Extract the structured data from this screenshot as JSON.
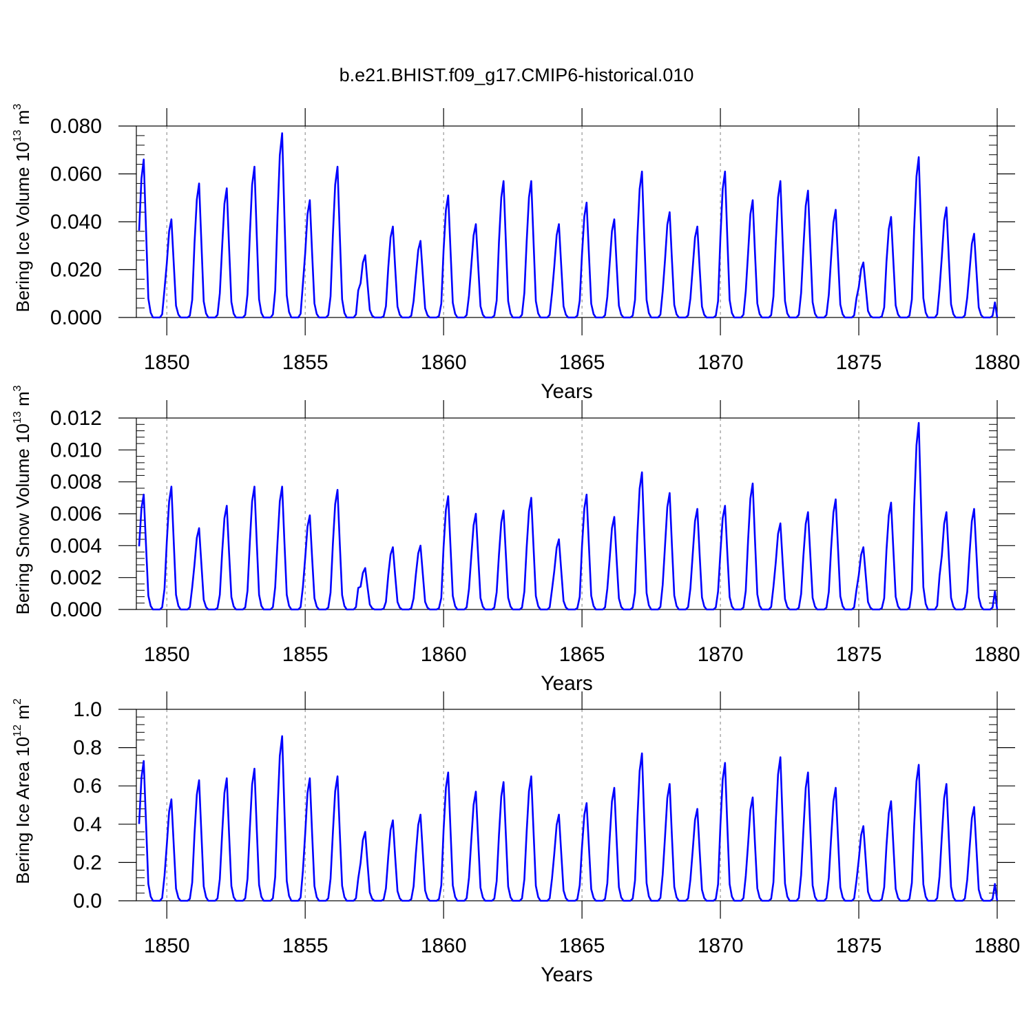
{
  "title": "b.e21.BHIST.f09_g17.CMIP6-historical.010",
  "colors": {
    "line": "#0000ff",
    "axis": "#000000",
    "gridline": "#808080"
  },
  "chart_data": [
    {
      "type": "line",
      "name": "ice-volume",
      "ylabel_main": "Bering Ice Volume 10",
      "ylabel_exp": "13",
      "ylabel_unit": " m",
      "ylabel_unit_exp": "3",
      "xlabel": "Years",
      "xlim": [
        1848.9,
        1880.0
      ],
      "ylim": [
        0,
        0.08
      ],
      "yticks": [
        0.0,
        0.02,
        0.04,
        0.06,
        0.08
      ],
      "ytick_labels": [
        "0.000",
        "0.020",
        "0.040",
        "0.060",
        "0.080"
      ],
      "xticks": [
        1850,
        1855,
        1860,
        1865,
        1870,
        1875,
        1880
      ],
      "xtick_labels": [
        "1850",
        "1855",
        "1860",
        "1865",
        "1870",
        "1875",
        "1880"
      ],
      "peaks": [
        0.066,
        0.041,
        0.056,
        0.054,
        0.063,
        0.077,
        0.049,
        0.063,
        0.026,
        0.038,
        0.032,
        0.051,
        0.039,
        0.057,
        0.057,
        0.039,
        0.048,
        0.041,
        0.061,
        0.044,
        0.038,
        0.061,
        0.049,
        0.057,
        0.053,
        0.045,
        0.023,
        0.042,
        0.067,
        0.046,
        0.035
      ],
      "series": [
        {
          "name": "Bering Ice Volume",
          "x_start": 1849.0,
          "x_step": 0.0833333,
          "values": []
        }
      ]
    },
    {
      "type": "line",
      "name": "snow-volume",
      "ylabel_main": "Bering Snow Volume 10",
      "ylabel_exp": "13",
      "ylabel_unit": " m",
      "ylabel_unit_exp": "3",
      "xlabel": "Years",
      "xlim": [
        1848.9,
        1880.0
      ],
      "ylim": [
        0,
        0.012
      ],
      "yticks": [
        0.0,
        0.002,
        0.004,
        0.006,
        0.008,
        0.01,
        0.012
      ],
      "ytick_labels": [
        "0.000",
        "0.002",
        "0.004",
        "0.006",
        "0.008",
        "0.010",
        "0.012"
      ],
      "xticks": [
        1850,
        1855,
        1860,
        1865,
        1870,
        1875,
        1880
      ],
      "xtick_labels": [
        "1850",
        "1855",
        "1860",
        "1865",
        "1870",
        "1875",
        "1880"
      ],
      "peaks": [
        0.0072,
        0.0077,
        0.0051,
        0.0065,
        0.0077,
        0.0077,
        0.0059,
        0.0075,
        0.0026,
        0.0039,
        0.004,
        0.0071,
        0.006,
        0.0062,
        0.007,
        0.0044,
        0.0072,
        0.0058,
        0.0086,
        0.0073,
        0.0063,
        0.0065,
        0.0079,
        0.0054,
        0.0061,
        0.0069,
        0.0039,
        0.0067,
        0.0117,
        0.0061,
        0.0063
      ],
      "series": [
        {
          "name": "Bering Snow Volume",
          "x_start": 1849.0,
          "x_step": 0.0833333,
          "values": []
        }
      ]
    },
    {
      "type": "line",
      "name": "ice-area",
      "ylabel_main": "Bering Ice Area 10",
      "ylabel_exp": "12",
      "ylabel_unit": " m",
      "ylabel_unit_exp": "2",
      "xlabel": "Years",
      "xlim": [
        1848.9,
        1880.0
      ],
      "ylim": [
        0,
        1.0
      ],
      "yticks": [
        0.0,
        0.2,
        0.4,
        0.6,
        0.8,
        1.0
      ],
      "ytick_labels": [
        "0.0",
        "0.2",
        "0.4",
        "0.6",
        "0.8",
        "1.0"
      ],
      "xticks": [
        1850,
        1855,
        1860,
        1865,
        1870,
        1875,
        1880
      ],
      "xtick_labels": [
        "1850",
        "1855",
        "1860",
        "1865",
        "1870",
        "1875",
        "1880"
      ],
      "peaks": [
        0.73,
        0.53,
        0.63,
        0.64,
        0.69,
        0.86,
        0.64,
        0.65,
        0.36,
        0.42,
        0.45,
        0.67,
        0.57,
        0.62,
        0.65,
        0.45,
        0.51,
        0.59,
        0.77,
        0.61,
        0.48,
        0.72,
        0.54,
        0.75,
        0.67,
        0.59,
        0.39,
        0.52,
        0.71,
        0.61,
        0.49
      ],
      "series": [
        {
          "name": "Bering Ice Area",
          "x_start": 1849.0,
          "x_step": 0.0833333,
          "values": []
        }
      ]
    }
  ]
}
